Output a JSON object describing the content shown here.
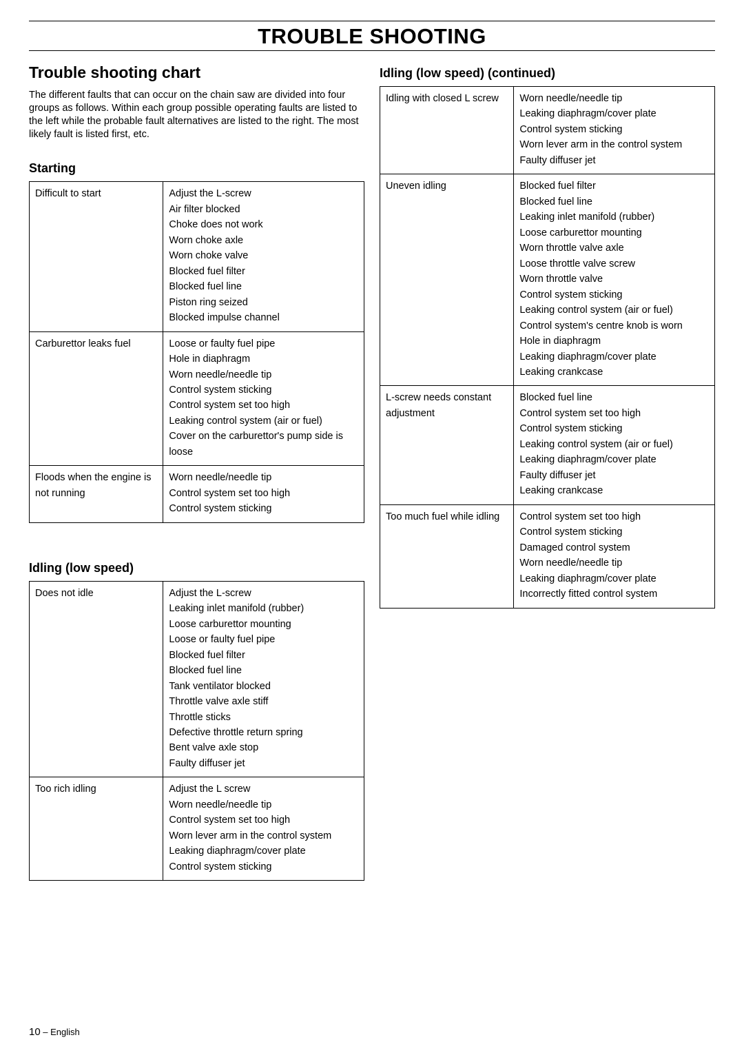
{
  "page_title": "TROUBLE SHOOTING",
  "section_heading": "Trouble shooting chart",
  "intro_text": "The different faults that can occur on the chain saw are divided into four groups as follows. Within each group possible operating faults are listed to the left while the probable fault alternatives are listed to the right. The most likely fault is listed first, etc.",
  "left": {
    "starting": {
      "title": "Starting",
      "rows": [
        {
          "fault": "Difficult to start",
          "causes": [
            "Adjust the L-screw",
            "Air filter blocked",
            "Choke does not work",
            "Worn choke axle",
            "Worn choke valve",
            "Blocked fuel filter",
            "Blocked fuel line",
            "Piston ring seized",
            "Blocked impulse channel"
          ]
        },
        {
          "fault": "Carburettor leaks fuel",
          "causes": [
            "Loose or faulty fuel pipe",
            "Hole in diaphragm",
            "Worn needle/needle tip",
            "Control system sticking",
            "Control system set too high",
            "Leaking control system (air or fuel)",
            "Cover on the carburettor's pump side is  loose"
          ]
        },
        {
          "fault": "Floods when the engine is not running",
          "causes": [
            "Worn needle/needle tip",
            "Control system set too high",
            "Control system sticking"
          ]
        }
      ]
    },
    "idling": {
      "title": "Idling (low speed)",
      "rows": [
        {
          "fault": "Does not idle",
          "causes": [
            "Adjust the L-screw",
            "Leaking inlet manifold (rubber)",
            "Loose carburettor mounting",
            "Loose or faulty fuel pipe",
            "Blocked fuel filter",
            "Blocked fuel line",
            "Tank ventilator blocked",
            "Throttle valve axle stiff",
            "Throttle sticks",
            "Defective throttle return spring",
            "Bent valve axle stop",
            "Faulty diffuser jet"
          ]
        },
        {
          "fault": "Too rich idling",
          "causes": [
            "Adjust the L screw",
            "Worn needle/needle tip",
            "Control system set too high",
            "Worn lever arm in the control system",
            "Leaking diaphragm/cover plate",
            "Control system sticking"
          ]
        }
      ]
    }
  },
  "right": {
    "idling_cont": {
      "title": "Idling (low speed) (continued)",
      "rows": [
        {
          "fault": "Idling with closed L screw",
          "causes": [
            "Worn needle/needle tip",
            "Leaking diaphragm/cover plate",
            "Control system sticking",
            "Worn lever arm in the control system",
            "Faulty diffuser jet"
          ]
        },
        {
          "fault": "Uneven idling",
          "causes": [
            "Blocked fuel filter",
            "Blocked fuel line",
            "Leaking inlet manifold (rubber)",
            "Loose carburettor mounting",
            "Worn throttle valve axle",
            "Loose throttle valve screw",
            "Worn throttle valve",
            "Control system sticking",
            "Leaking control system (air or fuel)",
            "Control system's centre knob is worn",
            "Hole in diaphragm",
            "Leaking diaphragm/cover plate",
            "Leaking crankcase"
          ]
        },
        {
          "fault": "L-screw needs constant adjustment",
          "causes": [
            "Blocked fuel line",
            "Control system set too high",
            "Control system sticking",
            "Leaking control system (air or fuel)",
            "Leaking diaphragm/cover plate",
            "Faulty diffuser jet",
            "Leaking crankcase"
          ]
        },
        {
          "fault": "Too much fuel while idling",
          "causes": [
            "Control system set too high",
            "Control system sticking",
            "Damaged control system",
            "Worn needle/needle tip",
            "Leaking diaphragm/cover plate",
            "Incorrectly fitted control system"
          ]
        }
      ]
    }
  },
  "footer": {
    "page_num": "10",
    "lang": " – English"
  }
}
